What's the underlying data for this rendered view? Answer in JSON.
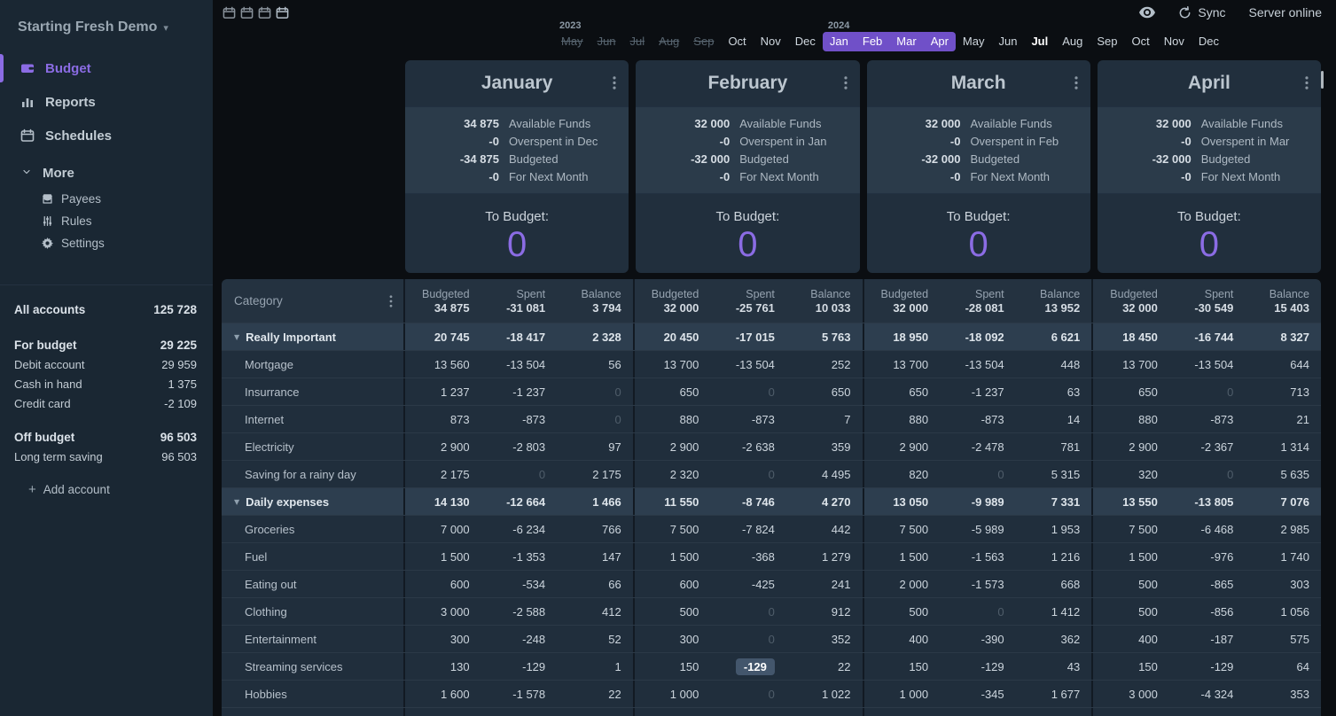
{
  "colors": {
    "accent": "#8b6ce4",
    "timeline_pill": "#7050c8",
    "sidebar_bg": "#1a2733",
    "main_bg": "#0b0e12",
    "card_bg": "#212f3d",
    "summary_bg": "#2b3b4a",
    "group_row_bg": "#2d3e4f",
    "row_bg": "#202e3c"
  },
  "sidebar": {
    "title": "Starting Fresh Demo",
    "nav": [
      {
        "label": "Budget",
        "icon": "wallet-icon",
        "active": true
      },
      {
        "label": "Reports",
        "icon": "reports-icon",
        "active": false
      },
      {
        "label": "Schedules",
        "icon": "calendar-icon",
        "active": false
      }
    ],
    "more_label": "More",
    "more_items": [
      {
        "label": "Payees",
        "icon": "store-icon"
      },
      {
        "label": "Rules",
        "icon": "sliders-icon"
      },
      {
        "label": "Settings",
        "icon": "gear-icon"
      }
    ],
    "accounts": {
      "all_label": "All accounts",
      "all_value": "125 728",
      "groups": [
        {
          "label": "For budget",
          "value": "29 225",
          "items": [
            {
              "label": "Debit account",
              "value": "29 959"
            },
            {
              "label": "Cash in hand",
              "value": "1 375"
            },
            {
              "label": "Credit card",
              "value": "-2 109"
            }
          ]
        },
        {
          "label": "Off budget",
          "value": "96 503",
          "items": [
            {
              "label": "Long term saving",
              "value": "96 503"
            }
          ]
        }
      ],
      "add_label": "Add account"
    }
  },
  "topbar": {
    "sync_label": "Sync",
    "server_status": "Server online"
  },
  "timeline": {
    "months": [
      {
        "label": "May",
        "state": "faded",
        "year": "2023"
      },
      {
        "label": "Jun",
        "state": "faded"
      },
      {
        "label": "Jul",
        "state": "faded"
      },
      {
        "label": "Aug",
        "state": "faded"
      },
      {
        "label": "Sep",
        "state": "faded"
      },
      {
        "label": "Oct",
        "state": "normal"
      },
      {
        "label": "Nov",
        "state": "normal"
      },
      {
        "label": "Dec",
        "state": "normal"
      },
      {
        "label": "Jan",
        "state": "selected",
        "year": "2024"
      },
      {
        "label": "Feb",
        "state": "selected"
      },
      {
        "label": "Mar",
        "state": "selected"
      },
      {
        "label": "Apr",
        "state": "selected"
      },
      {
        "label": "May",
        "state": "normal"
      },
      {
        "label": "Jun",
        "state": "normal"
      },
      {
        "label": "Jul",
        "state": "current"
      },
      {
        "label": "Aug",
        "state": "normal"
      },
      {
        "label": "Sep",
        "state": "normal"
      },
      {
        "label": "Oct",
        "state": "normal"
      },
      {
        "label": "Nov",
        "state": "normal"
      },
      {
        "label": "Dec",
        "state": "normal"
      }
    ]
  },
  "card_labels": {
    "to_budget": "To Budget:"
  },
  "months": [
    {
      "name": "January",
      "to_budget": "0",
      "summary": [
        {
          "value": "34 875",
          "label": "Available Funds"
        },
        {
          "value": "-0",
          "label": "Overspent in Dec"
        },
        {
          "value": "-34 875",
          "label": "Budgeted"
        },
        {
          "value": "-0",
          "label": "For Next Month"
        }
      ],
      "totals": {
        "budgeted": "34 875",
        "spent": "-31 081",
        "balance": "3 794"
      }
    },
    {
      "name": "February",
      "to_budget": "0",
      "summary": [
        {
          "value": "32 000",
          "label": "Available Funds"
        },
        {
          "value": "-0",
          "label": "Overspent in Jan"
        },
        {
          "value": "-32 000",
          "label": "Budgeted"
        },
        {
          "value": "-0",
          "label": "For Next Month"
        }
      ],
      "totals": {
        "budgeted": "32 000",
        "spent": "-25 761",
        "balance": "10 033"
      }
    },
    {
      "name": "March",
      "to_budget": "0",
      "summary": [
        {
          "value": "32 000",
          "label": "Available Funds"
        },
        {
          "value": "-0",
          "label": "Overspent in Feb"
        },
        {
          "value": "-32 000",
          "label": "Budgeted"
        },
        {
          "value": "-0",
          "label": "For Next Month"
        }
      ],
      "totals": {
        "budgeted": "32 000",
        "spent": "-28 081",
        "balance": "13 952"
      }
    },
    {
      "name": "April",
      "to_budget": "0",
      "summary": [
        {
          "value": "32 000",
          "label": "Available Funds"
        },
        {
          "value": "-0",
          "label": "Overspent in Mar"
        },
        {
          "value": "-32 000",
          "label": "Budgeted"
        },
        {
          "value": "-0",
          "label": "For Next Month"
        }
      ],
      "totals": {
        "budgeted": "32 000",
        "spent": "-30 549",
        "balance": "15 403"
      }
    }
  ],
  "table": {
    "category_header": "Category",
    "col_headers": [
      "Budgeted",
      "Spent",
      "Balance"
    ],
    "rows": [
      {
        "type": "group",
        "label": "Really Important",
        "cells": [
          [
            "20 745",
            "-18 417",
            "2 328"
          ],
          [
            "20 450",
            "-17 015",
            "5 763"
          ],
          [
            "18 950",
            "-18 092",
            "6 621"
          ],
          [
            "18 450",
            "-16 744",
            "8 327"
          ]
        ]
      },
      {
        "type": "item",
        "label": "Mortgage",
        "cells": [
          [
            "13 560",
            "-13 504",
            "56"
          ],
          [
            "13 700",
            "-13 504",
            "252"
          ],
          [
            "13 700",
            "-13 504",
            "448"
          ],
          [
            "13 700",
            "-13 504",
            "644"
          ]
        ]
      },
      {
        "type": "item",
        "label": "Insurrance",
        "cells": [
          [
            "1 237",
            "-1 237",
            "0"
          ],
          [
            "650",
            "0",
            "650"
          ],
          [
            "650",
            "-1 237",
            "63"
          ],
          [
            "650",
            "0",
            "713"
          ]
        ]
      },
      {
        "type": "item",
        "label": "Internet",
        "cells": [
          [
            "873",
            "-873",
            "0"
          ],
          [
            "880",
            "-873",
            "7"
          ],
          [
            "880",
            "-873",
            "14"
          ],
          [
            "880",
            "-873",
            "21"
          ]
        ]
      },
      {
        "type": "item",
        "label": "Electricity",
        "cells": [
          [
            "2 900",
            "-2 803",
            "97"
          ],
          [
            "2 900",
            "-2 638",
            "359"
          ],
          [
            "2 900",
            "-2 478",
            "781"
          ],
          [
            "2 900",
            "-2 367",
            "1 314"
          ]
        ]
      },
      {
        "type": "item",
        "label": "Saving for a rainy day",
        "cells": [
          [
            "2 175",
            "0",
            "2 175"
          ],
          [
            "2 320",
            "0",
            "4 495"
          ],
          [
            "820",
            "0",
            "5 315"
          ],
          [
            "320",
            "0",
            "5 635"
          ]
        ]
      },
      {
        "type": "group",
        "label": "Daily expenses",
        "cells": [
          [
            "14 130",
            "-12 664",
            "1 466"
          ],
          [
            "11 550",
            "-8 746",
            "4 270"
          ],
          [
            "13 050",
            "-9 989",
            "7 331"
          ],
          [
            "13 550",
            "-13 805",
            "7 076"
          ]
        ]
      },
      {
        "type": "item",
        "label": "Groceries",
        "cells": [
          [
            "7 000",
            "-6 234",
            "766"
          ],
          [
            "7 500",
            "-7 824",
            "442"
          ],
          [
            "7 500",
            "-5 989",
            "1 953"
          ],
          [
            "7 500",
            "-6 468",
            "2 985"
          ]
        ]
      },
      {
        "type": "item",
        "label": "Fuel",
        "cells": [
          [
            "1 500",
            "-1 353",
            "147"
          ],
          [
            "1 500",
            "-368",
            "1 279"
          ],
          [
            "1 500",
            "-1 563",
            "1 216"
          ],
          [
            "1 500",
            "-976",
            "1 740"
          ]
        ]
      },
      {
        "type": "item",
        "label": "Eating out",
        "cells": [
          [
            "600",
            "-534",
            "66"
          ],
          [
            "600",
            "-425",
            "241"
          ],
          [
            "2 000",
            "-1 573",
            "668"
          ],
          [
            "500",
            "-865",
            "303"
          ]
        ]
      },
      {
        "type": "item",
        "label": "Clothing",
        "cells": [
          [
            "3 000",
            "-2 588",
            "412"
          ],
          [
            "500",
            "0",
            "912"
          ],
          [
            "500",
            "0",
            "1 412"
          ],
          [
            "500",
            "-856",
            "1 056"
          ]
        ]
      },
      {
        "type": "item",
        "label": "Entertainment",
        "cells": [
          [
            "300",
            "-248",
            "52"
          ],
          [
            "300",
            "0",
            "352"
          ],
          [
            "400",
            "-390",
            "362"
          ],
          [
            "400",
            "-187",
            "575"
          ]
        ]
      },
      {
        "type": "item",
        "label": "Streaming services",
        "cells": [
          [
            "130",
            "-129",
            "1"
          ],
          [
            "150",
            "-129",
            "22"
          ],
          [
            "150",
            "-129",
            "43"
          ],
          [
            "150",
            "-129",
            "64"
          ]
        ]
      },
      {
        "type": "item",
        "label": "Hobbies",
        "cells": [
          [
            "1 600",
            "-1 578",
            "22"
          ],
          [
            "1 000",
            "0",
            "1 022"
          ],
          [
            "1 000",
            "-345",
            "1 677"
          ],
          [
            "3 000",
            "-4 324",
            "353"
          ]
        ]
      }
    ],
    "highlight_cell": {
      "row_label": "Streaming services",
      "month_index": 1,
      "col_index": 1
    }
  }
}
